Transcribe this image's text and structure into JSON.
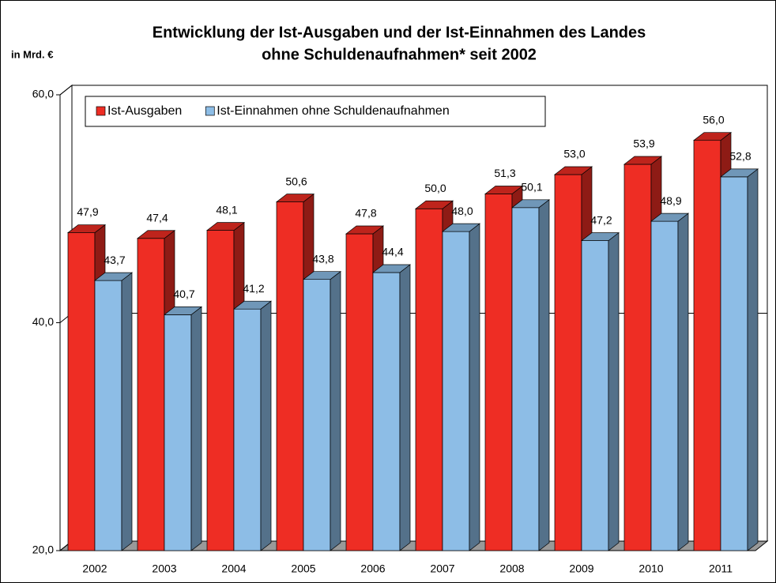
{
  "chart_data": {
    "type": "bar3d",
    "title": [
      "Entwicklung der Ist-Ausgaben und der Ist-Einnahmen des Landes",
      "ohne Schuldenaufnahmen* seit 2002"
    ],
    "y_label": "in Mrd. €",
    "categories": [
      "2002",
      "2003",
      "2004",
      "2005",
      "2006",
      "2007",
      "2008",
      "2009",
      "2010",
      "2011"
    ],
    "series": [
      {
        "name": "Ist-Ausgaben",
        "color": "#ee2d24",
        "values": [
          47.9,
          47.4,
          48.1,
          50.6,
          47.8,
          50.0,
          51.3,
          53.0,
          53.9,
          56.0
        ],
        "value_labels": [
          "47,9",
          "47,4",
          "48,1",
          "50,6",
          "47,8",
          "50,0",
          "51,3",
          "53,0",
          "53,9",
          "56,0"
        ]
      },
      {
        "name": "Ist-Einnahmen ohne Schuldenaufnahmen",
        "color": "#8dbde6",
        "values": [
          43.7,
          40.7,
          41.2,
          43.8,
          44.4,
          48.0,
          50.1,
          47.2,
          48.9,
          52.8
        ],
        "value_labels": [
          "43,7",
          "40,7",
          "41,2",
          "43,8",
          "44,4",
          "48,0",
          "50,1",
          "47,2",
          "48,9",
          "52,8"
        ]
      }
    ],
    "ylim": [
      20,
      60
    ],
    "yticks": [
      {
        "value": 20,
        "label": "20,0"
      },
      {
        "value": 40,
        "label": "40,0"
      },
      {
        "value": 60,
        "label": "60,0"
      }
    ],
    "grid": true,
    "legend": "top-left"
  }
}
